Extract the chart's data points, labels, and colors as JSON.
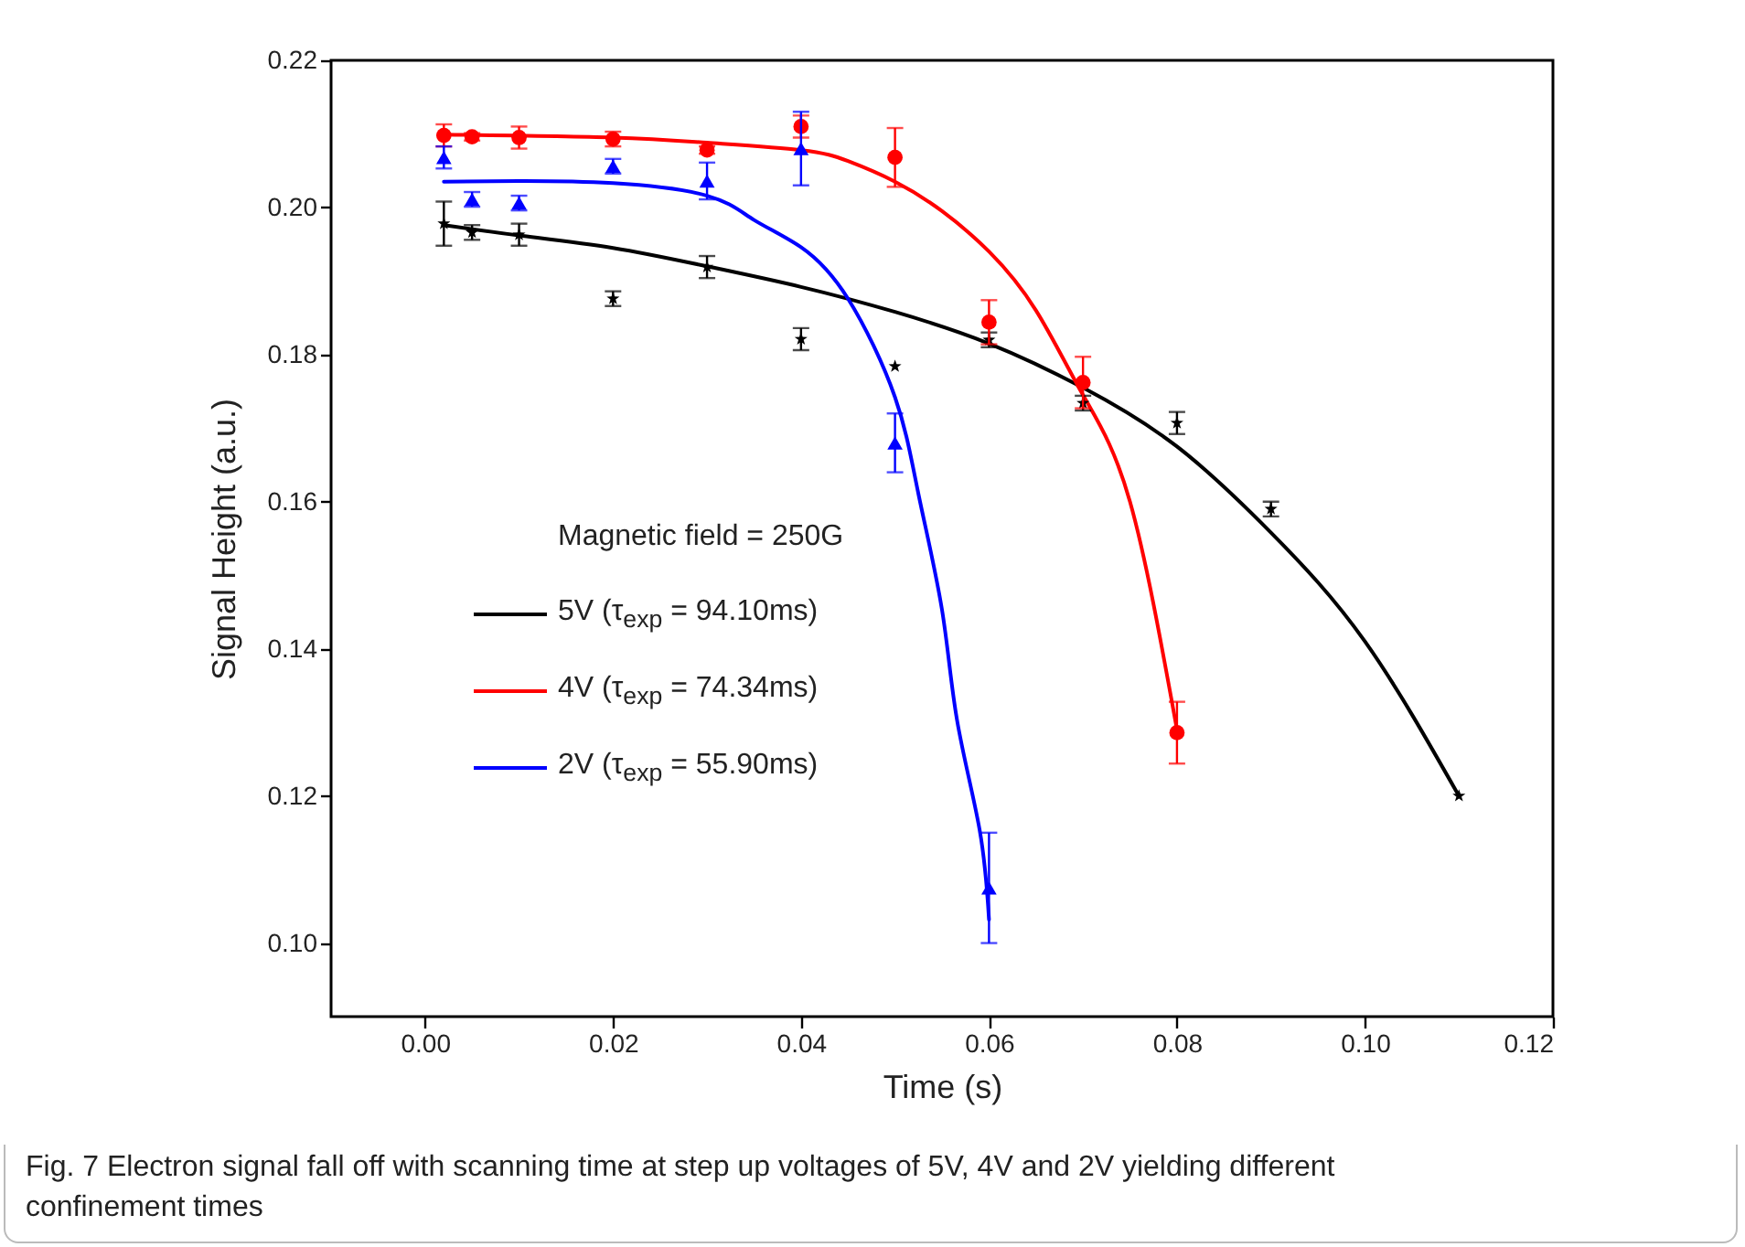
{
  "chart_data": {
    "type": "scatter",
    "xlabel": "Time (s)",
    "ylabel": "Signal Height (a.u.)",
    "legend_title": "Magnetic field = 250G",
    "xlim": [
      -0.01,
      0.12
    ],
    "ylim": [
      0.09,
      0.22
    ],
    "xticks": [
      {
        "value": 0,
        "label": "0.00"
      },
      {
        "value": 0.02,
        "label": "0.02"
      },
      {
        "value": 0.04,
        "label": "0.04"
      },
      {
        "value": 0.06,
        "label": "0.06"
      },
      {
        "value": 0.08,
        "label": "0.08"
      },
      {
        "value": 0.1,
        "label": "0.10"
      },
      {
        "value": 0.12,
        "label": "0.12"
      }
    ],
    "yticks": [
      {
        "value": 0.1,
        "label": "0.10"
      },
      {
        "value": 0.12,
        "label": "0.12"
      },
      {
        "value": 0.14,
        "label": "0.14"
      },
      {
        "value": 0.16,
        "label": "0.16"
      },
      {
        "value": 0.18,
        "label": "0.18"
      },
      {
        "value": 0.2,
        "label": "0.20"
      },
      {
        "value": 0.22,
        "label": "0.22"
      }
    ],
    "grid": false,
    "legend": "left",
    "annotations": [
      "Fig. 7  Electron signal fall off with scanning time at step up voltages of 5V, 4V and 2V yielding different confinement times"
    ],
    "series": [
      {
        "marker": "star",
        "color": "#000000",
        "x": [
          0.002,
          0.005,
          0.01,
          0.02,
          0.03,
          0.04,
          0.05,
          0.06,
          0.07,
          0.08,
          0.09,
          0.11
        ],
        "values": [
          0.1978,
          0.1966,
          0.1963,
          0.1876,
          0.1919,
          0.1821,
          0.1784,
          0.182,
          0.1734,
          0.1707,
          0.159,
          0.12
        ],
        "errors": [
          0.003,
          0.001,
          0.0015,
          0.001,
          0.0015,
          0.0015,
          null,
          0.001,
          0.001,
          0.0015,
          0.001,
          null
        ]
      },
      {
        "marker": "circle",
        "color": "#ff0000",
        "x": [
          0.002,
          0.005,
          0.01,
          0.02,
          0.03,
          0.04,
          0.05,
          0.06,
          0.07,
          0.08
        ],
        "values": [
          0.2098,
          0.2096,
          0.2095,
          0.2093,
          0.2078,
          0.211,
          0.2068,
          0.1844,
          0.1762,
          0.1286
        ],
        "errors": [
          0.0015,
          0.0005,
          0.0015,
          0.001,
          0.0005,
          0.0015,
          0.004,
          0.003,
          0.0035,
          0.0042
        ]
      },
      {
        "marker": "triangle",
        "color": "#0000ff",
        "x": [
          0.002,
          0.005,
          0.01,
          0.02,
          0.03,
          0.04,
          0.05,
          0.06
        ],
        "values": [
          0.2068,
          0.2011,
          0.2006,
          0.2056,
          0.2036,
          0.208,
          0.168,
          0.1075
        ],
        "errors": [
          0.0015,
          0.001,
          0.001,
          0.001,
          0.0025,
          0.005,
          0.004,
          0.0075
        ]
      },
      {
        "type": "line",
        "name": "5V (τ$_{exp}$ = 94.10ms)",
        "color": "#000000",
        "marker": "none",
        "line_style": "solid",
        "x": [
          0.002,
          0.01,
          0.02,
          0.03,
          0.04,
          0.05,
          0.06,
          0.07,
          0.08,
          0.09,
          0.1,
          0.11
        ],
        "values": [
          0.1976,
          0.1962,
          0.1945,
          0.192,
          0.1892,
          0.1858,
          0.1815,
          0.1755,
          0.1675,
          0.1558,
          0.141,
          0.12
        ]
      },
      {
        "type": "line",
        "name": "4V (τ$_{exp}$ = 74.34ms)",
        "color": "#ff0000",
        "marker": "none",
        "line_style": "solid",
        "x": [
          0.002,
          0.02,
          0.03,
          0.04,
          0.045,
          0.05,
          0.055,
          0.06,
          0.065,
          0.07,
          0.075,
          0.08
        ],
        "values": [
          0.2099,
          0.2095,
          0.2088,
          0.2078,
          0.2063,
          0.2035,
          0.1995,
          0.194,
          0.186,
          0.1745,
          0.16,
          0.129
        ]
      },
      {
        "type": "line",
        "name": "2V (τ$_{exp}$ = 55.90ms)",
        "color": "#0000ff",
        "marker": "none",
        "line_style": "solid",
        "x": [
          0.002,
          0.01,
          0.02,
          0.03,
          0.035,
          0.04,
          0.045,
          0.05,
          0.0525,
          0.055,
          0.0566,
          0.059,
          0.06
        ],
        "values": [
          0.2035,
          0.2036,
          0.2033,
          0.2016,
          0.1983,
          0.1946,
          0.1876,
          0.1742,
          0.161,
          0.1453,
          0.1303,
          0.1154,
          0.1032
        ]
      }
    ]
  }
}
